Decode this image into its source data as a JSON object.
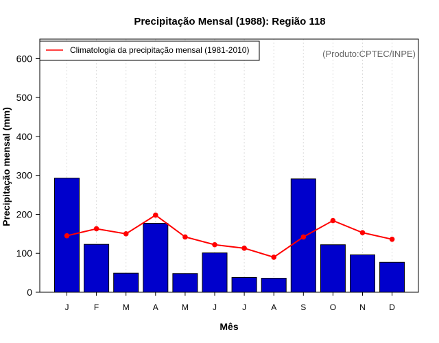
{
  "chart_data": {
    "type": "bar",
    "title": "Precipitação Mensal (1988): Região 118",
    "xlabel": "Mês",
    "ylabel": "Precipitação mensal (mm)",
    "categories": [
      "J",
      "F",
      "M",
      "A",
      "M",
      "J",
      "J",
      "A",
      "S",
      "O",
      "N",
      "D"
    ],
    "ylim": [
      0,
      650
    ],
    "yticks": [
      0,
      100,
      200,
      300,
      400,
      500,
      600
    ],
    "series": [
      {
        "name": "Precipitação mensal (1988)",
        "type": "bar",
        "values": [
          293,
          123,
          49,
          177,
          48,
          101,
          38,
          36,
          291,
          122,
          96,
          77
        ]
      },
      {
        "name": "Climatologia da precipitação mensal (1981-2010)",
        "type": "line",
        "values": [
          145,
          163,
          150,
          198,
          142,
          122,
          113,
          90,
          142,
          184,
          153,
          136
        ]
      }
    ],
    "legend": {
      "position": "top-left",
      "entries": [
        "Climatologia da precipitação mensal (1981-2010)"
      ]
    },
    "annotation": "(Produto:CPTEC/INPE)",
    "grid": "vertical-dotted",
    "colors": {
      "bar": "#0000cc",
      "bar_edge": "#000000",
      "line": "#ff0000",
      "grid": "#dddddd"
    }
  }
}
